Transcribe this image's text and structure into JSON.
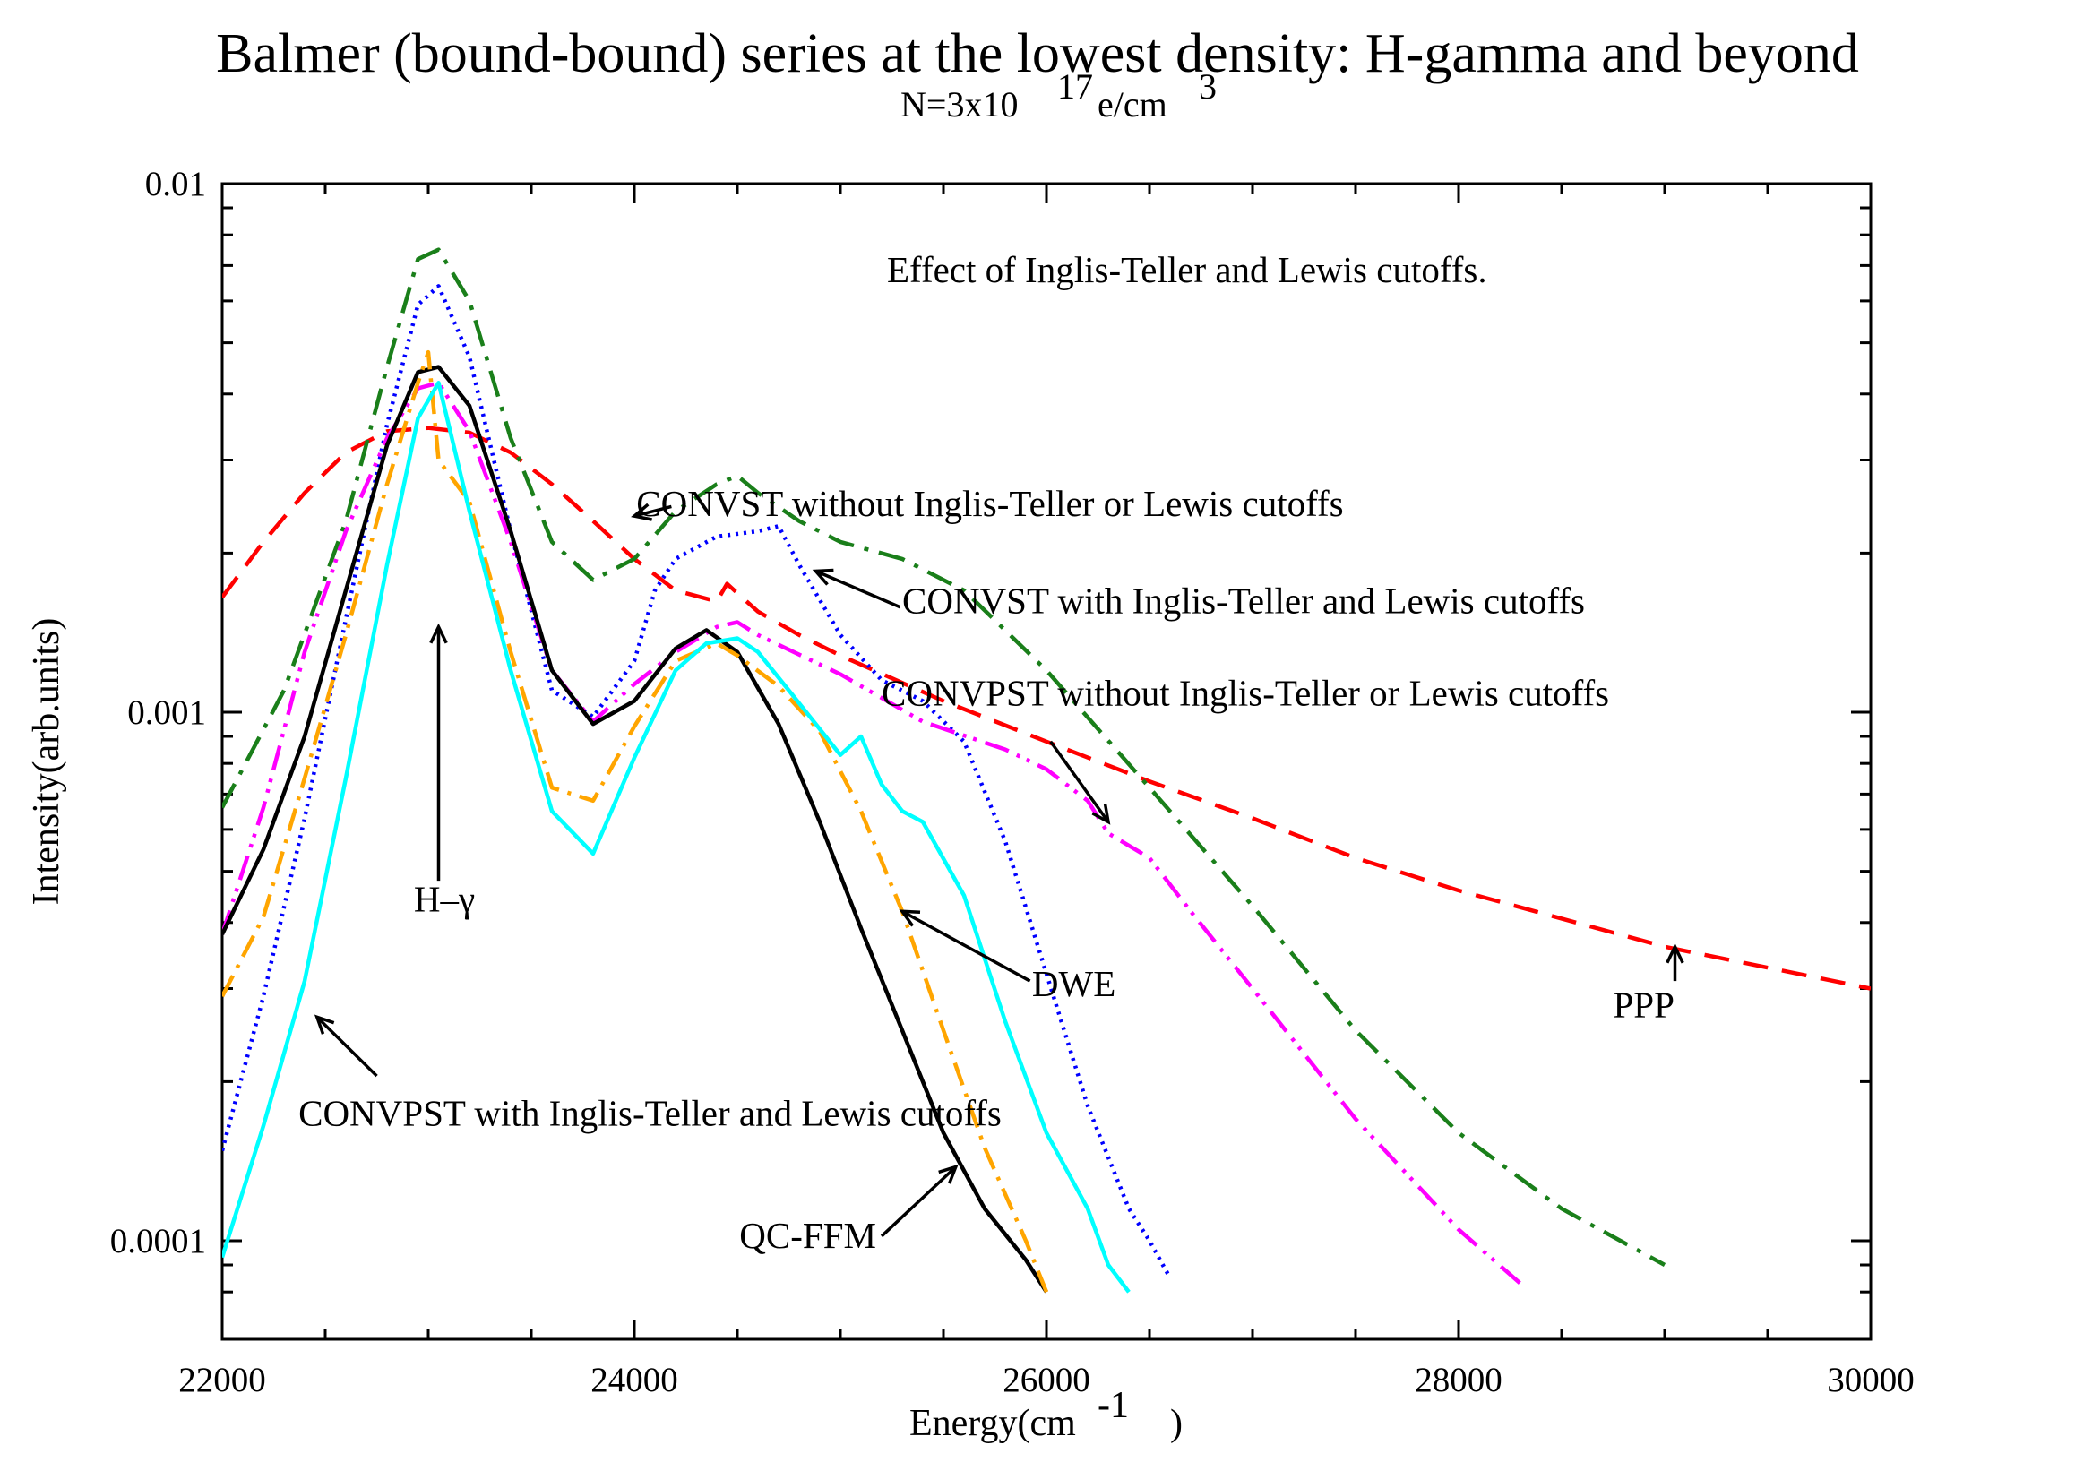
{
  "chart_data": {
    "type": "line",
    "title": "Balmer (bound-bound) series at the lowest density: H-gamma and beyond",
    "subtitle": {
      "base": "N=3x10",
      "exp": "17",
      "mid": " e/cm",
      "unit_exp": "3"
    },
    "xlabel": {
      "base": "Energy(cm",
      "exp": "-1",
      "close": ")"
    },
    "ylabel": "Intensity(arb.units)",
    "xlim": [
      22000,
      30000
    ],
    "ylim": [
      8e-05,
      0.01
    ],
    "yscale": "log",
    "x_ticks": [
      22000,
      24000,
      26000,
      28000,
      30000
    ],
    "x_tick_labels": [
      "22000",
      "24000",
      "26000",
      "28000",
      "30000"
    ],
    "y_ticks": [
      0.0001,
      0.001,
      0.01
    ],
    "y_tick_labels": [
      "0.0001",
      "0.001",
      "0.01"
    ],
    "note": "Effect of Inglis-Teller and Lewis cutoffs.",
    "series": [
      {
        "name": "PPP",
        "color": "#ff0000",
        "dash": "28,16",
        "x": [
          22000,
          22200,
          22400,
          22600,
          22800,
          23000,
          23200,
          23400,
          23600,
          23800,
          24000,
          24200,
          24400,
          24450,
          24500,
          24600,
          24800,
          25000,
          25500,
          26000,
          26500,
          27000,
          27500,
          28000,
          29000,
          30000
        ],
        "y": [
          0.00165,
          0.0021,
          0.0026,
          0.0031,
          0.0034,
          0.00345,
          0.00338,
          0.0031,
          0.0027,
          0.0023,
          0.00195,
          0.0017,
          0.00162,
          0.00175,
          0.00168,
          0.00155,
          0.0014,
          0.00128,
          0.00105,
          0.00088,
          0.00074,
          0.00063,
          0.00053,
          0.00046,
          0.00036,
          0.0003
        ]
      },
      {
        "name": "CONVST without Inglis-Teller or Lewis cutoffs",
        "color": "#1a7f1a",
        "dash": "30,12,5,12",
        "x": [
          22000,
          22300,
          22600,
          22800,
          22950,
          23050,
          23200,
          23400,
          23600,
          23800,
          24000,
          24200,
          24400,
          24500,
          24600,
          24800,
          25000,
          25300,
          25600,
          26000,
          26500,
          27000,
          27500,
          28000,
          28500,
          29000
        ],
        "y": [
          0.00066,
          0.0011,
          0.0023,
          0.0045,
          0.0072,
          0.0075,
          0.006,
          0.0033,
          0.0021,
          0.00178,
          0.00195,
          0.0024,
          0.0027,
          0.0028,
          0.0026,
          0.0023,
          0.0021,
          0.00195,
          0.0017,
          0.0012,
          0.00072,
          0.00043,
          0.00025,
          0.00016,
          0.000115,
          9e-05
        ]
      },
      {
        "name": "CONVST with Inglis-Teller and Lewis cutoffs",
        "color": "#0000ff",
        "dash": "3,6",
        "x": [
          22000,
          22200,
          22400,
          22600,
          22800,
          22950,
          23050,
          23200,
          23400,
          23600,
          23800,
          24000,
          24100,
          24200,
          24400,
          24600,
          24700,
          24800,
          25000,
          25200,
          25400,
          25600,
          25800,
          26000,
          26200,
          26400,
          26500,
          26600
        ],
        "y": [
          0.000148,
          0.00029,
          0.00063,
          0.0015,
          0.0035,
          0.0059,
          0.0064,
          0.0047,
          0.0022,
          0.0011,
          0.00098,
          0.00125,
          0.0017,
          0.00195,
          0.00215,
          0.0022,
          0.00225,
          0.0019,
          0.0014,
          0.00115,
          0.00105,
          0.00088,
          0.00057,
          0.00032,
          0.00018,
          0.000115,
          0.0001,
          8.5e-05
        ]
      },
      {
        "name": "CONVPST without Inglis-Teller or Lewis cutoffs",
        "color": "#ff00ff",
        "dash": "28,10,4,8,4,10",
        "x": [
          22000,
          22200,
          22400,
          22600,
          22800,
          22950,
          23050,
          23200,
          23400,
          23600,
          23800,
          24000,
          24200,
          24400,
          24500,
          24600,
          25000,
          25400,
          25800,
          26000,
          26200,
          26300,
          26500,
          26700,
          27000,
          27500,
          28000,
          28300
        ],
        "y": [
          0.00038,
          0.00066,
          0.0013,
          0.0022,
          0.0033,
          0.0041,
          0.0042,
          0.0034,
          0.0021,
          0.0012,
          0.00096,
          0.00113,
          0.0013,
          0.00145,
          0.00148,
          0.0014,
          0.00118,
          0.00096,
          0.00085,
          0.00078,
          0.00068,
          0.00059,
          0.00053,
          0.00042,
          0.0003,
          0.00017,
          0.000105,
          8.3e-05
        ]
      },
      {
        "name": "QC-FFM",
        "color": "#000000",
        "dash": "",
        "x": [
          22000,
          22200,
          22400,
          22600,
          22800,
          22950,
          23050,
          23200,
          23400,
          23600,
          23800,
          24000,
          24200,
          24350,
          24500,
          24700,
          24900,
          25100,
          25300,
          25500,
          25700,
          25900,
          26000
        ],
        "y": [
          0.00038,
          0.00055,
          0.0009,
          0.0017,
          0.0032,
          0.0044,
          0.0045,
          0.0038,
          0.0022,
          0.0012,
          0.00095,
          0.00105,
          0.00132,
          0.00143,
          0.0013,
          0.00095,
          0.00062,
          0.00039,
          0.00025,
          0.00016,
          0.000115,
          9.2e-05,
          8e-05
        ]
      },
      {
        "name": "DWE",
        "color": "#ffa500",
        "dash": "26,10,4,10",
        "x": [
          22000,
          22200,
          22400,
          22600,
          22800,
          22950,
          23000,
          23050,
          23200,
          23400,
          23600,
          23800,
          24000,
          24200,
          24400,
          24500,
          24700,
          24900,
          25100,
          25300,
          25500,
          25700,
          25900,
          26000
        ],
        "y": [
          0.00029,
          0.00041,
          0.00075,
          0.0014,
          0.0027,
          0.0042,
          0.0048,
          0.003,
          0.0025,
          0.0013,
          0.00072,
          0.00068,
          0.00094,
          0.00125,
          0.00135,
          0.00128,
          0.00112,
          0.00092,
          0.00065,
          0.00042,
          0.00025,
          0.00015,
          0.0001,
          8e-05
        ]
      },
      {
        "name": "CONVPST with Inglis-Teller and Lewis cutoffs",
        "color": "#00ffff",
        "dash": "",
        "x": [
          22000,
          22200,
          22400,
          22600,
          22800,
          22950,
          23050,
          23200,
          23400,
          23600,
          23800,
          24000,
          24200,
          24350,
          24500,
          24600,
          24800,
          25000,
          25100,
          25200,
          25300,
          25400,
          25600,
          25800,
          26000,
          26200,
          26300,
          26400
        ],
        "y": [
          9.3e-05,
          0.000165,
          0.00031,
          0.00075,
          0.0019,
          0.0036,
          0.0042,
          0.0024,
          0.0012,
          0.00065,
          0.00054,
          0.00082,
          0.0012,
          0.00135,
          0.00138,
          0.0013,
          0.00104,
          0.00083,
          0.0009,
          0.00073,
          0.00065,
          0.00062,
          0.00045,
          0.00026,
          0.00016,
          0.000115,
          9e-05,
          8e-05
        ]
      }
    ],
    "annotations": [
      {
        "label": "CONVST without Inglis-Teller or Lewis cutoffs",
        "tx": 24010,
        "ty": 0.00235,
        "ax1": 24180,
        "ay1": 0.00245,
        "ax2": 24000,
        "ay2": 0.00235
      },
      {
        "label": "CONVST with Inglis-Teller and Lewis cutoffs",
        "tx": 25300,
        "ty": 0.00154,
        "ax1": 25290,
        "ay1": 0.00158,
        "ax2": 24880,
        "ay2": 0.00185
      },
      {
        "label": "CONVPST without Inglis-Teller or Lewis cutoffs",
        "tx": 25200,
        "ty": 0.00103,
        "ax1": 26020,
        "ay1": 0.00088,
        "ax2": 26300,
        "ay2": 0.00062
      },
      {
        "label": "H–γ",
        "tx": 22930,
        "ty": 0.00042,
        "ax1": 23050,
        "ay1": 0.00048,
        "ax2": 23050,
        "ay2": 0.00145
      },
      {
        "label": "DWE",
        "tx": 25930,
        "ty": 0.00029,
        "ax1": 25920,
        "ay1": 0.00031,
        "ax2": 25300,
        "ay2": 0.00042
      },
      {
        "label": "PPP",
        "tx": 28750,
        "ty": 0.000265,
        "ax1": 29050,
        "ay1": 0.00031,
        "ax2": 29050,
        "ay2": 0.00036
      },
      {
        "label": "CONVPST with Inglis-Teller and Lewis cutoffs",
        "tx": 22370,
        "ty": 0.000165,
        "ax1": 22750,
        "ay1": 0.000205,
        "ax2": 22460,
        "ay2": 0.000265
      },
      {
        "label": "QC-FFM",
        "tx": 24510,
        "ty": 9.7e-05,
        "ax1": 25200,
        "ay1": 0.000102,
        "ax2": 25560,
        "ay2": 0.000138
      }
    ]
  }
}
